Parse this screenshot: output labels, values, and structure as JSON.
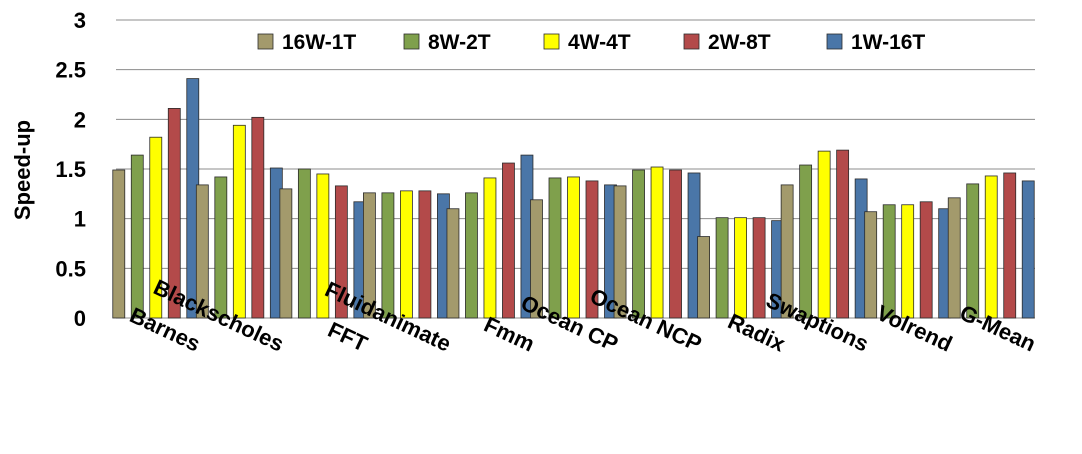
{
  "chart_data": {
    "type": "bar",
    "ylabel": "Speed-up",
    "xlabel": "",
    "ylim": [
      0,
      3
    ],
    "yticks": [
      "0",
      "0.5",
      "1",
      "1.5",
      "2",
      "2.5",
      "3"
    ],
    "grid": "horizontal",
    "legend_position": "top",
    "categories": [
      "Barnes",
      "Blackscholes",
      "FFT",
      "Fluidanimate",
      "Fmm",
      "Ocean CP",
      "Ocean NCP",
      "Radix",
      "Swaptions",
      "Volrend",
      "G-Mean"
    ],
    "series": [
      {
        "name": "16W-1T",
        "color": "#a39a6c",
        "values": [
          1.49,
          1.34,
          1.3,
          1.26,
          1.1,
          1.19,
          1.33,
          0.82,
          1.34,
          1.07,
          1.21
        ]
      },
      {
        "name": "8W-2T",
        "color": "#7fa04c",
        "values": [
          1.64,
          1.42,
          1.5,
          1.26,
          1.26,
          1.41,
          1.49,
          1.01,
          1.54,
          1.14,
          1.35
        ]
      },
      {
        "name": "4W-4T",
        "color": "#ffff00",
        "values": [
          1.82,
          1.94,
          1.45,
          1.28,
          1.41,
          1.42,
          1.52,
          1.01,
          1.68,
          1.14,
          1.43
        ]
      },
      {
        "name": "2W-8T",
        "color": "#b34a4a",
        "values": [
          2.11,
          2.02,
          1.33,
          1.28,
          1.56,
          1.38,
          1.49,
          1.01,
          1.69,
          1.17,
          1.46
        ]
      },
      {
        "name": "1W-16T",
        "color": "#4a76a8",
        "values": [
          2.41,
          1.51,
          1.17,
          1.25,
          1.64,
          1.34,
          1.46,
          0.98,
          1.4,
          1.1,
          1.38
        ]
      }
    ]
  }
}
